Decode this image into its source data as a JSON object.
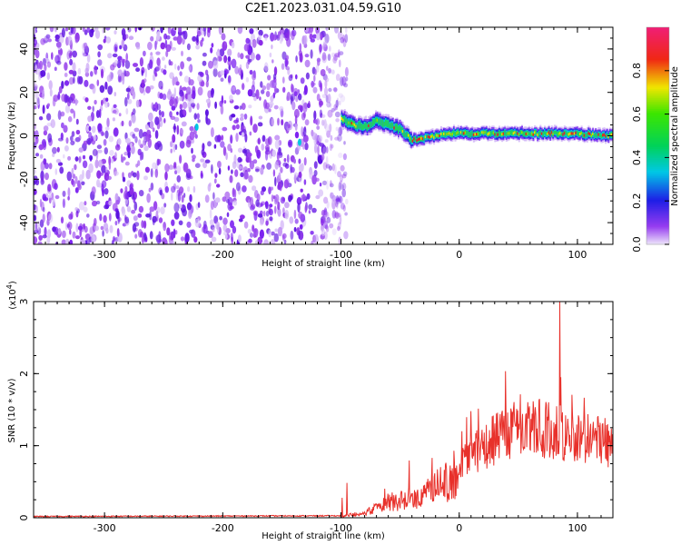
{
  "title": "C2E1.2023.031.04.59.G10",
  "chart_data": [
    {
      "type": "heatmap",
      "xlabel": "Height of straight line (km)",
      "ylabel": "Frequency (Hz)",
      "xlim": [
        -360,
        130
      ],
      "ylim": [
        -50,
        50
      ],
      "xticks": [
        -300,
        -200,
        -100,
        0,
        100
      ],
      "yticks": [
        -40,
        -20,
        0,
        20,
        40
      ],
      "noise_region_x": [
        -360,
        -95
      ],
      "ridge": {
        "x": [
          -100,
          -90,
          -80,
          -70,
          -60,
          -50,
          -40,
          -30,
          -20,
          -10,
          0,
          20,
          40,
          60,
          80,
          100,
          120,
          130
        ],
        "y": [
          8,
          5,
          4,
          7,
          5,
          3,
          -2,
          -1,
          0,
          1,
          1,
          1,
          1,
          1,
          1,
          1,
          0,
          0
        ]
      },
      "colorbar": {
        "label": "Normalized spectral amplitude",
        "ticks": [
          0.0,
          0.2,
          0.4,
          0.6,
          0.8
        ],
        "range": [
          0,
          1
        ]
      }
    },
    {
      "type": "line",
      "xlabel": "Height of straight line (km)",
      "ylabel": "SNR (10 * v/v)",
      "scale_label": "(x10",
      "scale_exp": "4",
      "scale_close": ")",
      "xlim": [
        -360,
        130
      ],
      "ylim": [
        0,
        3
      ],
      "xticks": [
        -300,
        -200,
        -100,
        0,
        100
      ],
      "yticks": [
        0,
        1,
        2,
        3
      ],
      "color": "#e8312b",
      "envelope": {
        "x": [
          -360,
          -100,
          -75,
          -60,
          -45,
          -30,
          -20,
          -10,
          0,
          10,
          20,
          30,
          40,
          50,
          60,
          70,
          80,
          90,
          100,
          110,
          120,
          130
        ],
        "y": [
          0.01,
          0.02,
          0.15,
          0.35,
          0.38,
          0.45,
          0.65,
          0.85,
          1.0,
          1.15,
          1.3,
          1.45,
          1.55,
          1.6,
          1.65,
          1.65,
          1.6,
          1.55,
          1.5,
          1.45,
          1.4,
          1.4
        ]
      },
      "peak_point": {
        "x": 85,
        "y": 3.0
      }
    }
  ]
}
